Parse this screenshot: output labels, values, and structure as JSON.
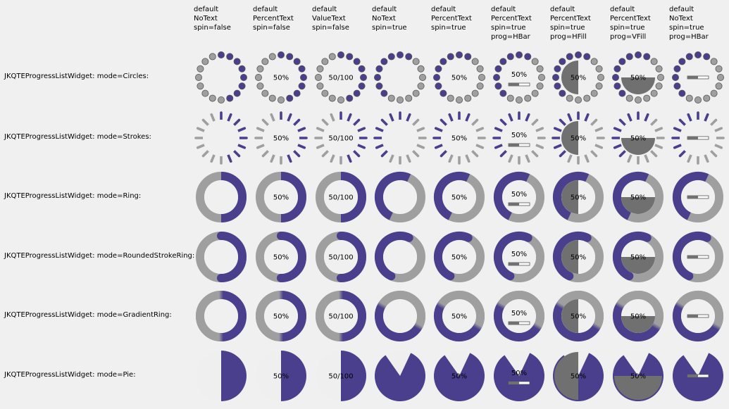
{
  "colors": {
    "accent": "#4a3f8c",
    "track": "#9f9f9f",
    "background": "#f0f0f0",
    "fill_overlay": "#707070"
  },
  "columns": [
    {
      "header": "default\nNoText\nspin=false",
      "text": "none",
      "spin": false,
      "prog": "none",
      "text_value": ""
    },
    {
      "header": "default\nPercentText\nspin=false",
      "text": "percent",
      "spin": false,
      "prog": "none",
      "text_value": "50%"
    },
    {
      "header": "default\nValueText\nspin=false",
      "text": "value",
      "spin": false,
      "prog": "none",
      "text_value": "50/100"
    },
    {
      "header": "default\nNoText\nspin=true",
      "text": "none",
      "spin": true,
      "prog": "none",
      "text_value": ""
    },
    {
      "header": "default\nPercentText\nspin=true",
      "text": "percent",
      "spin": true,
      "prog": "none",
      "text_value": "50%"
    },
    {
      "header": "default\nPercentText\nspin=true\nprog=HBar",
      "text": "percent",
      "spin": true,
      "prog": "HBar",
      "text_value": "50%"
    },
    {
      "header": "default\nPercentText\nspin=true\nprog=HFill",
      "text": "percent",
      "spin": true,
      "prog": "HFill",
      "text_value": "50%"
    },
    {
      "header": "default\nPercentText\nspin=true\nprog=VFill",
      "text": "percent",
      "spin": true,
      "prog": "VFill",
      "text_value": "50%"
    },
    {
      "header": "default\nNoText\nspin=true\nprog=HBar",
      "text": "none",
      "spin": true,
      "prog": "HBar",
      "text_value": ""
    }
  ],
  "rows": [
    {
      "label": "JKQTEProgressListWidget: mode=Circles:",
      "mode": "Circles"
    },
    {
      "label": "JKQTEProgressListWidget: mode=Strokes:",
      "mode": "Strokes"
    },
    {
      "label": "JKQTEProgressListWidget: mode=Ring:",
      "mode": "Ring"
    },
    {
      "label": "JKQTEProgressListWidget: mode=RoundedStrokeRing:",
      "mode": "RoundedStrokeRing"
    },
    {
      "label": "JKQTEProgressListWidget: mode=GradientRing:",
      "mode": "GradientRing"
    },
    {
      "label": "JKQTEProgressListWidget: mode=Pie:",
      "mode": "Pie"
    }
  ],
  "progress": 0.5
}
